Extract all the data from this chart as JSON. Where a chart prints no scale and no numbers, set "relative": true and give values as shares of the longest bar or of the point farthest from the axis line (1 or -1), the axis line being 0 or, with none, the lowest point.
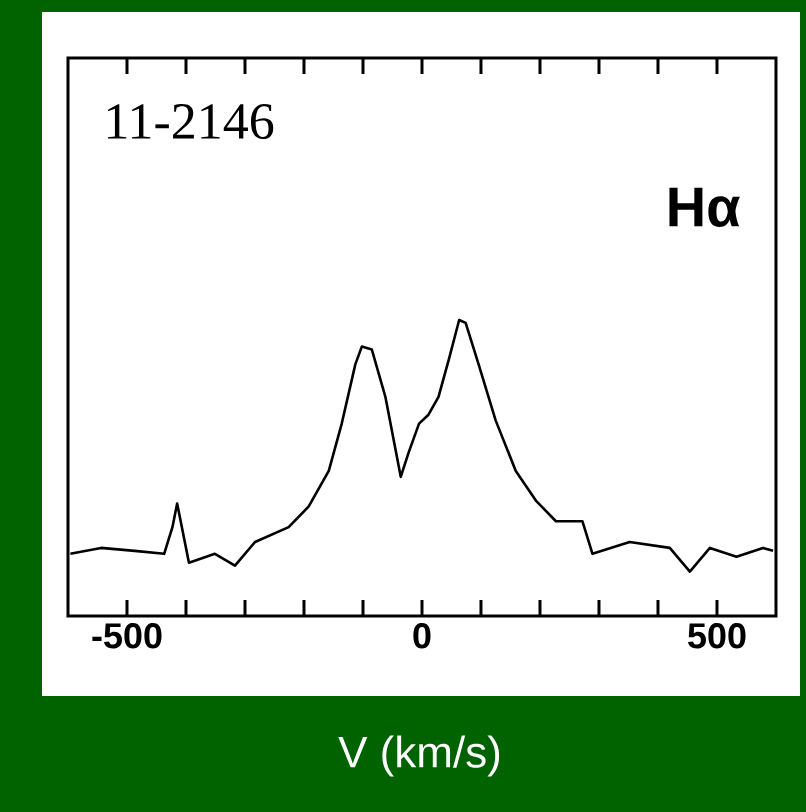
{
  "chart_data": {
    "type": "line",
    "relative": true,
    "xlabel": "V (km/s)",
    "annotations": [
      "11-2146",
      "Hα"
    ],
    "xlim": [
      -600,
      600
    ],
    "xticks": [
      -500,
      {
        "value": -400,
        "label": null
      },
      {
        "value": -300,
        "label": null
      },
      {
        "value": -200,
        "label": null
      },
      {
        "value": -100,
        "label": null
      },
      0,
      {
        "value": 100,
        "label": null
      },
      {
        "value": 200,
        "label": null
      },
      {
        "value": 300,
        "label": null
      },
      {
        "value": 400,
        "label": null
      },
      500
    ],
    "x": [
      -596,
      -544,
      -487,
      -437,
      -423,
      -415,
      -405,
      -395,
      -351,
      -317,
      -283,
      -226,
      -192,
      -158,
      -136,
      -113,
      -102,
      -85,
      -62,
      -36,
      -23,
      -5,
      11,
      28,
      46,
      63,
      74,
      96,
      125,
      159,
      193,
      227,
      272,
      289,
      352,
      420,
      454,
      488,
      533,
      578,
      595
    ],
    "series": [
      {
        "color": "#000000",
        "values": [
          0.21,
          0.23,
          0.22,
          0.21,
          0.3,
          0.38,
          0.28,
          0.18,
          0.21,
          0.17,
          0.25,
          0.3,
          0.37,
          0.49,
          0.65,
          0.85,
          0.91,
          0.9,
          0.74,
          0.47,
          0.55,
          0.65,
          0.68,
          0.74,
          0.87,
          1.0,
          0.99,
          0.85,
          0.66,
          0.49,
          0.39,
          0.32,
          0.32,
          0.21,
          0.25,
          0.23,
          0.15,
          0.23,
          0.2,
          0.23,
          0.22
        ]
      }
    ],
    "marker": "none",
    "line_style": "solid"
  }
}
